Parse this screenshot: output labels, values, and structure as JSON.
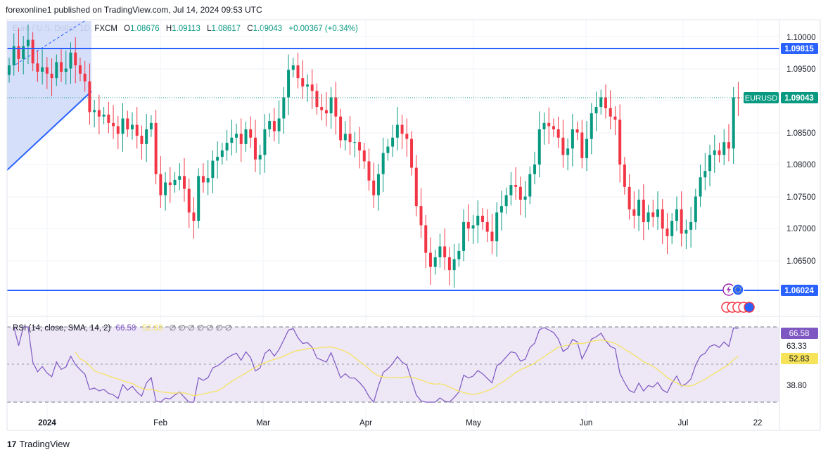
{
  "header": {
    "published": "forexonline1 published on TradingView.com, Jul 14, 2024 09:53 UTC"
  },
  "legend": {
    "symbol": "Euro / U.S. Dollar, 1D, FXCM",
    "open_label": "O",
    "open": "1.08676",
    "high_label": "H",
    "high": "1.09113",
    "low_label": "L",
    "low": "1.08617",
    "close_label": "C",
    "close": "1.09043",
    "change": "+0.00367 (+0.34%)"
  },
  "rsi_legend": {
    "title": "RSI (14, close, SMA, 14, 2)",
    "rsi_value": "66.58",
    "sma_value": "52.83",
    "placeholders": "∅ ∅ ∅ ∅ ∅ ∅ ∅"
  },
  "footer": {
    "brand": "TradingView",
    "logo_glyph": "17"
  },
  "colors": {
    "up": "#089981",
    "down": "#f23645",
    "level_line": "#2962ff",
    "rsi_line": "#7e57c2",
    "rsi_sma": "#f7e35a",
    "rsi_band": "#ede7f6",
    "triangle_fill": "#d1dcfa"
  },
  "chart_data": [
    {
      "type": "candlestick",
      "symbol": "EURUSD",
      "timeframe": "1D",
      "x_labels": [
        "2024",
        "Feb",
        "Mar",
        "Apr",
        "May",
        "Jun",
        "Jul",
        "22"
      ],
      "y_ticks": [
        "1.10000",
        "1.09500",
        "1.08500",
        "1.08000",
        "1.07500",
        "1.07000",
        "1.06500"
      ],
      "ylim": [
        1.0575,
        1.1035
      ],
      "horizontal_levels": [
        "1.09815",
        "1.06024"
      ],
      "last_price_label": "EURUSD",
      "last_price": "1.09043",
      "closes": [
        1.0955,
        1.0985,
        1.0965,
        1.0985,
        1.0995,
        1.0958,
        1.0945,
        1.0952,
        1.0942,
        1.0935,
        1.096,
        1.0945,
        1.095,
        1.0975,
        1.0955,
        1.0942,
        1.093,
        1.0882,
        1.0885,
        1.0875,
        1.0878,
        1.0865,
        1.086,
        1.0848,
        1.0872,
        1.0855,
        1.0862,
        1.0845,
        1.0832,
        1.0855,
        1.0865,
        1.0785,
        1.0752,
        1.0772,
        1.0768,
        1.0776,
        1.0782,
        1.0762,
        1.0725,
        1.0712,
        1.0782,
        1.0772,
        1.0779,
        1.0806,
        1.0812,
        1.0822,
        1.0834,
        1.0842,
        1.0848,
        1.0832,
        1.0855,
        1.0842,
        1.0808,
        1.0815,
        1.0855,
        1.0868,
        1.0852,
        1.0872,
        1.0905,
        1.0948,
        1.0955,
        1.0935,
        1.0922,
        1.0925,
        1.0915,
        1.089,
        1.0885,
        1.088,
        1.0905,
        1.0875,
        1.0838,
        1.0848,
        1.0835,
        1.0835,
        1.0822,
        1.0805,
        1.0775,
        1.0752,
        1.0785,
        1.0818,
        1.0828,
        1.0842,
        1.0862,
        1.0848,
        1.084,
        1.0795,
        1.0735,
        1.0705,
        1.0662,
        1.064,
        1.0655,
        1.0672,
        1.0655,
        1.0635,
        1.0652,
        1.0665,
        1.071,
        1.07,
        1.0705,
        1.072,
        1.071,
        1.0695,
        1.068,
        1.0725,
        1.0735,
        1.0752,
        1.0768,
        1.0765,
        1.0745,
        1.075,
        1.0785,
        1.08,
        1.0855,
        1.0865,
        1.086,
        1.0855,
        1.0842,
        1.0815,
        1.0825,
        1.0855,
        1.085,
        1.081,
        1.084,
        1.088,
        1.089,
        1.0905,
        1.0888,
        1.0875,
        1.087,
        1.08,
        1.0765,
        1.073,
        1.072,
        1.0745,
        1.071,
        1.0725,
        1.0718,
        1.073,
        1.07,
        1.0688,
        1.0712,
        1.073,
        1.0692,
        1.0698,
        1.071,
        1.075,
        1.078,
        1.079,
        1.0815,
        1.0822,
        1.0815,
        1.0835,
        1.0825,
        1.0905,
        1.0904
      ]
    },
    {
      "type": "line",
      "title": "RSI (14, close, SMA, 14, 2)",
      "series": [
        {
          "name": "RSI"
        },
        {
          "name": "SMA"
        }
      ],
      "y_ticks": [
        "63.33",
        "38.80"
      ],
      "value_labels": [
        "66.58",
        "52.83"
      ],
      "ylim": [
        30,
        70
      ]
    }
  ]
}
